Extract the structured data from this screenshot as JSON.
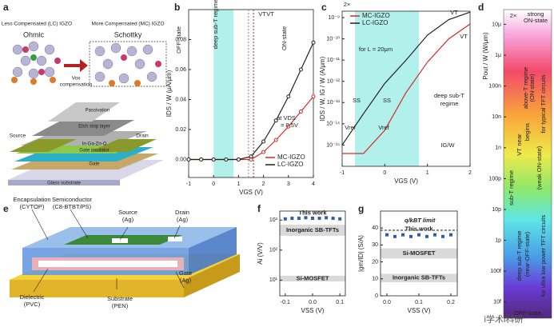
{
  "panel_labels": [
    "a",
    "b",
    "c",
    "d",
    "e",
    "f",
    "g"
  ],
  "panel_a": {
    "lc_title": "Less Compensated (LC) IGZO",
    "mc_title": "More Compensated (MC) IGZO",
    "ohmic": "Ohmic",
    "schottky": "Schottky",
    "compensation": [
      "Vox",
      "compensation"
    ],
    "layers": [
      "Passivation",
      "Etch stop layer",
      "In-Ga-Zn-O",
      "Gate insulator",
      "Gate",
      "Glass substrate"
    ],
    "source": "Source",
    "drain": "Drain"
  },
  "panel_e": {
    "labels": [
      [
        "Encapsulation",
        "(CYTOP)"
      ],
      [
        "Semiconductor",
        "(C8-BTBT/PS)"
      ],
      [
        "Source",
        "(Ag)"
      ],
      [
        "Drain",
        "(Ag)"
      ],
      [
        "Gate",
        "(Ag)"
      ],
      [
        "Dielectric",
        "(PVC)"
      ],
      [
        "Substrate",
        "(PEN)"
      ]
    ]
  },
  "watermark": "i学术i科研",
  "chart_data": [
    {
      "type": "line",
      "xlabel": "VGS (V)",
      "ylabel": "IDS / W (μA/μm)",
      "x": [
        -1,
        -0.5,
        0,
        0.5,
        1,
        1.5,
        2,
        2.5,
        3,
        3.5,
        4
      ],
      "xlim": [
        -1,
        4
      ],
      "xticks": [
        -1,
        0,
        1,
        2,
        3,
        4
      ],
      "ylim": [
        -0.012,
        0.1
      ],
      "yticks": [
        {
          "value": 0,
          "label": "0.00"
        },
        {
          "value": 0.02,
          "label": "0.02"
        },
        {
          "value": 0.04,
          "label": "0.04"
        },
        {
          "value": 0.06,
          "label": "0.06"
        },
        {
          "value": 0.08,
          "label": "0.08"
        }
      ],
      "shade": [
        0,
        0.8
      ],
      "vt_lines": [
        1.4,
        1.6
      ],
      "series": [
        {
          "name": "MC-IGZO",
          "color": "#d42a2a",
          "values": [
            0,
            0,
            0,
            0,
            0,
            0,
            0.005,
            0.013,
            0.022,
            0.032,
            0.042
          ]
        },
        {
          "name": "LC-IGZO",
          "color": "#222222",
          "values": [
            0,
            0,
            0,
            0,
            0,
            0.002,
            0.012,
            0.026,
            0.042,
            0.06,
            0.078
          ]
        }
      ],
      "annotations": [
        "OFF-state",
        "deep sub-T regime",
        "ON-state",
        "VT",
        "VT",
        "at VDS",
        "= 0.5V"
      ]
    },
    {
      "type": "line",
      "log": true,
      "xlabel": "VGS (V)",
      "ylabel": "IDS / W, IG / W (A/μm)",
      "x": [
        -1,
        -0.5,
        0,
        0.5,
        1,
        1.5,
        2
      ],
      "xlim": [
        -1,
        2
      ],
      "xticks": [
        -1,
        0,
        1,
        2
      ],
      "ylim": [
        1e-16,
        2e-09
      ],
      "yticks": [
        {
          "value": 1e-15,
          "label": "10⁻¹⁵"
        },
        {
          "value": 1e-14,
          "label": "10⁻¹⁴"
        },
        {
          "value": 1e-13,
          "label": "10⁻¹³"
        },
        {
          "value": 1e-12,
          "label": "10⁻¹²"
        },
        {
          "value": 1e-11,
          "label": "10⁻¹¹"
        },
        {
          "value": 1e-10,
          "label": "10⁻¹⁰"
        },
        {
          "value": 1e-09,
          "label": "10⁻⁹"
        }
      ],
      "shade": [
        -0.7,
        0.8
      ],
      "series": [
        {
          "name": "MC-IGZO",
          "color": "#d42a2a",
          "values": [
            4e-16,
            4e-16,
            5e-15,
            3e-13,
            8e-12,
            1e-10,
            5e-10
          ]
        },
        {
          "name": "LC-IGZO",
          "color": "#222222",
          "values": [
            1e-15,
            3e-14,
            8e-13,
            1e-11,
            1.5e-10,
            8e-10,
            1.8e-09
          ]
        }
      ],
      "annotations": [
        "for L = 20μm",
        "SS",
        "SS",
        "deep sub-T",
        "regime",
        "Vref",
        "Vref",
        "IG/W",
        "VT",
        "VT",
        "2×"
      ]
    },
    {
      "type": "colorbar",
      "log": true,
      "ylabel": "Pout / W (W/μm)",
      "ylim": [
        3e-15,
        3e-05
      ],
      "yticks": [
        {
          "value": 1e-05,
          "label": "10μ"
        },
        {
          "value": 1e-06,
          "label": "1μ"
        },
        {
          "value": 1e-07,
          "label": "100n"
        },
        {
          "value": 1e-08,
          "label": "10n"
        },
        {
          "value": 1e-09,
          "label": "1n"
        },
        {
          "value": 1e-10,
          "label": "100p"
        },
        {
          "value": 1e-11,
          "label": "10p"
        },
        {
          "value": 1e-12,
          "label": "1p"
        },
        {
          "value": 1e-13,
          "label": "100f"
        },
        {
          "value": 1e-14,
          "label": "10f"
        }
      ],
      "annotations": [
        "2×",
        "strong",
        "ON-state",
        "above-T regime",
        "(ON-state)",
        "for typical TFT circuits",
        "near",
        "VT",
        "begins",
        "sub-T regime",
        "(weak ON-state)",
        "deep sub-T regime",
        "(near-OFF-state)",
        "for ultra low power TFT circuits",
        "OFF-state"
      ]
    },
    {
      "type": "scatter",
      "log": true,
      "xlabel": "VSS (V)",
      "ylabel": "Ai (V/V)",
      "x": [
        -0.1,
        -0.075,
        -0.05,
        -0.025,
        0,
        0.025,
        0.05,
        0.075,
        0.1
      ],
      "xlim": [
        -0.12,
        0.12
      ],
      "xticks": [
        -0.1,
        {
          "value": 0,
          "label": "0.0"
        },
        0.1
      ],
      "ylim": [
        3,
        2000
      ],
      "yticks": [
        {
          "value": 10,
          "label": "10¹"
        },
        {
          "value": 100,
          "label": "10²"
        },
        {
          "value": 1000,
          "label": "10³"
        }
      ],
      "series": [
        {
          "name": "This work",
          "color": "#2f5fa8",
          "values": [
            1100,
            1150,
            1150,
            1200,
            1150,
            1150,
            1200,
            1150,
            1100
          ]
        }
      ],
      "bands": [
        {
          "name": "Inorganic SB-TFTs",
          "range": [
            300,
            700
          ]
        },
        {
          "name": "Si-MOSFET",
          "range": [
            9,
            14
          ]
        }
      ]
    },
    {
      "type": "scatter",
      "xlabel": "VSS (V)",
      "ylabel": "|gm/ID| (S/A)",
      "x": [
        0,
        0.025,
        0.05,
        0.075,
        0.1,
        0.125,
        0.15,
        0.175,
        0.2
      ],
      "xlim": [
        -0.02,
        0.22
      ],
      "xticks": [
        {
          "value": 0,
          "label": "0.0"
        },
        0.1,
        0.2
      ],
      "ylim": [
        0,
        50
      ],
      "yticks": [
        0,
        10,
        20,
        30,
        40
      ],
      "series": [
        {
          "name": "This work",
          "color": "#2f5fa8",
          "values": [
            36,
            35,
            36,
            35,
            36,
            35,
            36,
            35,
            36
          ]
        }
      ],
      "bands": [
        {
          "name": "Si-MOSFET",
          "range": [
            22,
            28
          ]
        },
        {
          "name": "Inorganic SB-TFTs",
          "range": [
            8,
            13
          ]
        }
      ],
      "limit": {
        "name": "q/kBT limit",
        "value": 38.7
      }
    }
  ]
}
